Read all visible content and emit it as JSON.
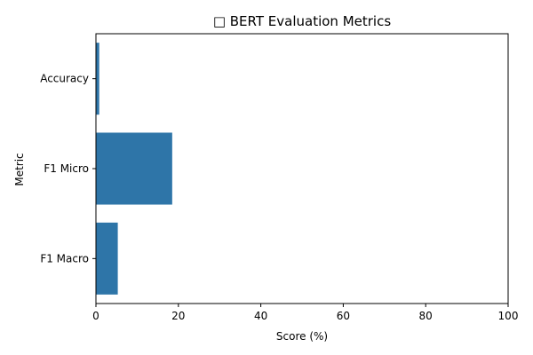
{
  "chart_data": {
    "type": "bar",
    "orientation": "horizontal",
    "title": "□ BERT Evaluation Metrics",
    "xlabel": "Score (%)",
    "ylabel": "Metric",
    "categories": [
      "Accuracy",
      "F1 Micro",
      "F1 Macro"
    ],
    "values": [
      0.8,
      18.5,
      5.3
    ],
    "xlim": [
      0,
      100
    ],
    "xticks": [
      0,
      20,
      40,
      60,
      80,
      100
    ],
    "grid": false,
    "bar_color": "#2e75a8"
  }
}
